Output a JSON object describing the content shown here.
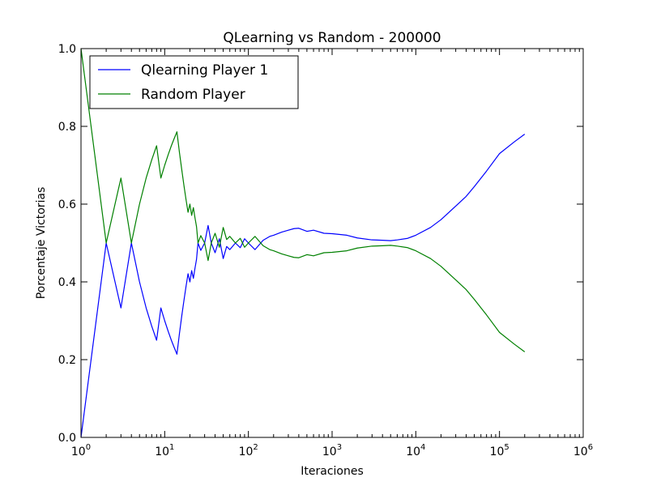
{
  "chart_data": {
    "type": "line",
    "title": "QLearning vs Random - 200000",
    "xlabel": "Iteraciones",
    "ylabel": "Porcentaje Victorias",
    "x_scale": "log",
    "xlim": [
      1,
      1000000
    ],
    "ylim": [
      0.0,
      1.0
    ],
    "x_ticks": [
      {
        "value": 1,
        "base": "10",
        "exp": "0"
      },
      {
        "value": 10,
        "base": "10",
        "exp": "1"
      },
      {
        "value": 100,
        "base": "10",
        "exp": "2"
      },
      {
        "value": 1000,
        "base": "10",
        "exp": "3"
      },
      {
        "value": 10000,
        "base": "10",
        "exp": "4"
      },
      {
        "value": 100000,
        "base": "10",
        "exp": "5"
      },
      {
        "value": 1000000,
        "base": "10",
        "exp": "6"
      }
    ],
    "y_ticks": [
      {
        "value": 0.0,
        "label": "0.0"
      },
      {
        "value": 0.2,
        "label": "0.2"
      },
      {
        "value": 0.4,
        "label": "0.4"
      },
      {
        "value": 0.6,
        "label": "0.6"
      },
      {
        "value": 0.8,
        "label": "0.8"
      },
      {
        "value": 1.0,
        "label": "1.0"
      }
    ],
    "grid": false,
    "legend_position": "top-left",
    "series": [
      {
        "name": "Qlearning Player 1",
        "color": "#0000ff",
        "x": [
          1,
          2,
          3,
          4,
          5,
          6,
          7,
          8,
          9,
          10,
          11,
          12,
          13,
          14,
          15,
          16,
          17,
          18,
          19,
          20,
          21,
          22,
          23,
          24,
          25,
          27,
          30,
          33,
          36,
          40,
          45,
          50,
          55,
          60,
          70,
          80,
          90,
          100,
          120,
          150,
          180,
          200,
          250,
          300,
          350,
          400,
          500,
          600,
          800,
          1000,
          1500,
          2000,
          3000,
          4000,
          5000,
          6000,
          8000,
          10000,
          15000,
          20000,
          30000,
          40000,
          50000,
          70000,
          100000,
          150000,
          200000
        ],
        "y": [
          0.0,
          0.5,
          0.333,
          0.5,
          0.4,
          0.333,
          0.286,
          0.25,
          0.333,
          0.3,
          0.273,
          0.25,
          0.231,
          0.214,
          0.267,
          0.313,
          0.353,
          0.389,
          0.421,
          0.4,
          0.429,
          0.409,
          0.435,
          0.458,
          0.5,
          0.481,
          0.5,
          0.545,
          0.5,
          0.475,
          0.511,
          0.46,
          0.491,
          0.483,
          0.5,
          0.488,
          0.511,
          0.5,
          0.483,
          0.507,
          0.517,
          0.52,
          0.528,
          0.533,
          0.537,
          0.538,
          0.53,
          0.533,
          0.525,
          0.524,
          0.52,
          0.513,
          0.508,
          0.507,
          0.506,
          0.508,
          0.512,
          0.52,
          0.54,
          0.56,
          0.595,
          0.62,
          0.645,
          0.685,
          0.73,
          0.76,
          0.78
        ]
      },
      {
        "name": "Random Player",
        "color": "#008000",
        "x": [
          1,
          2,
          3,
          4,
          5,
          6,
          7,
          8,
          9,
          10,
          11,
          12,
          13,
          14,
          15,
          16,
          17,
          18,
          19,
          20,
          21,
          22,
          23,
          24,
          25,
          27,
          30,
          33,
          36,
          40,
          45,
          50,
          55,
          60,
          70,
          80,
          90,
          100,
          120,
          150,
          180,
          200,
          250,
          300,
          350,
          400,
          500,
          600,
          800,
          1000,
          1500,
          2000,
          3000,
          4000,
          5000,
          6000,
          8000,
          10000,
          15000,
          20000,
          30000,
          40000,
          50000,
          70000,
          100000,
          150000,
          200000
        ],
        "y": [
          1.0,
          0.5,
          0.667,
          0.5,
          0.6,
          0.667,
          0.714,
          0.75,
          0.667,
          0.7,
          0.727,
          0.75,
          0.769,
          0.786,
          0.733,
          0.688,
          0.647,
          0.611,
          0.579,
          0.6,
          0.571,
          0.591,
          0.565,
          0.542,
          0.5,
          0.519,
          0.5,
          0.455,
          0.5,
          0.525,
          0.489,
          0.54,
          0.509,
          0.517,
          0.5,
          0.512,
          0.489,
          0.5,
          0.517,
          0.493,
          0.483,
          0.48,
          0.472,
          0.467,
          0.463,
          0.462,
          0.47,
          0.467,
          0.475,
          0.476,
          0.48,
          0.487,
          0.492,
          0.493,
          0.494,
          0.492,
          0.488,
          0.48,
          0.46,
          0.44,
          0.405,
          0.38,
          0.355,
          0.315,
          0.27,
          0.24,
          0.22
        ]
      }
    ]
  }
}
